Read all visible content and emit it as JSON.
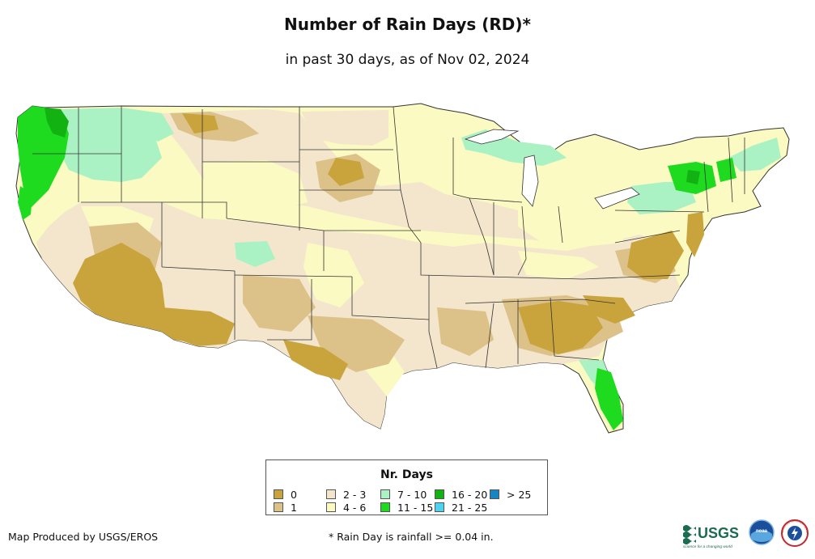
{
  "title": "Number of Rain Days (RD)*",
  "subtitle": "in past 30 days, as of Nov 02, 2024",
  "legend": {
    "title": "Nr. Days",
    "items": [
      {
        "label": "0",
        "color": "#c9a43c"
      },
      {
        "label": "1",
        "color": "#dcc189"
      },
      {
        "label": "2 - 3",
        "color": "#f3e6cc"
      },
      {
        "label": "4 - 6",
        "color": "#fafac2"
      },
      {
        "label": "7 - 10",
        "color": "#aaf2c3"
      },
      {
        "label": "11 - 15",
        "color": "#1fdb1f"
      },
      {
        "label": "16 - 20",
        "color": "#13b213"
      },
      {
        "label": "21 - 25",
        "color": "#4fd2f0"
      },
      {
        "label": "> 25",
        "color": "#1685c2"
      }
    ]
  },
  "footer": {
    "credit": "Map Produced by USGS/EROS",
    "note": "* Rain Day is rainfall >= 0.04 in."
  },
  "logos": {
    "usgs_text": "USGS",
    "usgs_tagline": "science for a changing world",
    "noaa_text": "noaa",
    "nws_text": "NATIONAL WEATHER SERVICE"
  }
}
